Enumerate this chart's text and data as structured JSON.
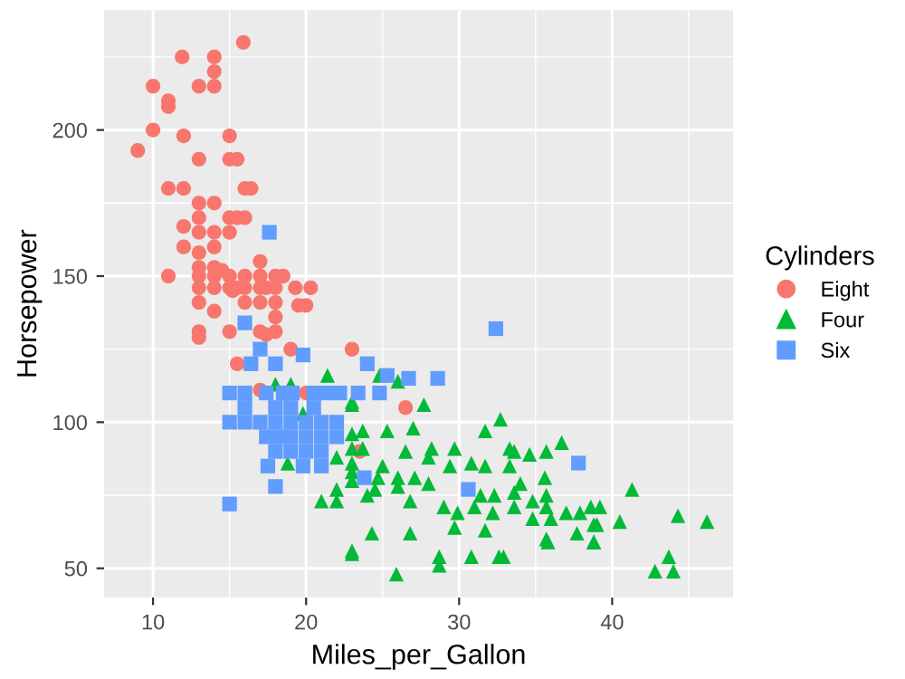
{
  "chart_data": {
    "type": "scatter",
    "xlabel": "Miles_per_Gallon",
    "ylabel": "Horsepower",
    "legend_title": "Cylinders",
    "legend": "right",
    "grid": true,
    "xlim": [
      6.8,
      47.9
    ],
    "ylim": [
      40,
      241
    ],
    "xticks": [
      10,
      20,
      30,
      40
    ],
    "yticks": [
      50,
      100,
      150,
      200
    ],
    "series": [
      {
        "name": "Eight",
        "color": "#f8766d",
        "marker": "circle",
        "x": [
          15.9,
          11.9,
          14,
          14,
          10,
          13,
          14,
          11,
          11,
          10,
          12,
          15,
          9,
          13,
          15,
          15.5,
          11,
          12,
          16,
          16.4,
          13,
          14,
          13,
          15,
          15.5,
          16,
          12,
          13,
          14,
          15,
          12,
          13,
          14,
          13,
          17,
          11,
          13,
          14,
          15,
          16,
          17,
          18,
          18.5,
          14,
          14.5,
          13,
          14,
          15,
          15.5,
          16,
          17,
          17.4,
          18,
          19.3,
          20.3,
          13,
          14,
          15.2,
          16,
          17,
          18,
          18,
          19.5,
          20,
          13,
          13,
          15,
          17,
          17.4,
          18,
          19,
          23,
          15.5,
          17,
          20,
          26.5,
          23.5
        ],
        "values": [
          230,
          225,
          225,
          220,
          215,
          215,
          215,
          210,
          208,
          200,
          198,
          198,
          193,
          190,
          190,
          190,
          180,
          180,
          180,
          180,
          175,
          175,
          170,
          170,
          170,
          170,
          167,
          165,
          165,
          165,
          160,
          158,
          160,
          153,
          155,
          150,
          150,
          150,
          150,
          150,
          150,
          150,
          150,
          153,
          152,
          146,
          146,
          146,
          146,
          146,
          146,
          146,
          146,
          146,
          146,
          141,
          138,
          145,
          141,
          141,
          141,
          136,
          140,
          140,
          131,
          129,
          131,
          131,
          130,
          131,
          125,
          125,
          120,
          111,
          110,
          105,
          90
        ]
      },
      {
        "name": "Four",
        "color": "#00ba38",
        "marker": "triangle",
        "x": [
          18,
          19,
          21.4,
          23,
          19.8,
          23,
          18.8,
          22,
          23,
          22,
          21,
          22,
          23,
          24.8,
          26,
          27.7,
          23,
          32.7,
          31.7,
          36.7,
          35.7,
          34.6,
          33.3,
          33.6,
          23.7,
          25.3,
          27,
          28.2,
          29.7,
          30.8,
          31.7,
          33.3,
          34,
          35.6,
          35.7,
          35.7,
          36,
          35.7,
          35.8,
          37,
          37.9,
          38.6,
          39,
          37.7,
          38.8,
          23,
          23,
          23,
          24.7,
          26,
          27.1,
          26,
          28,
          24.5,
          24,
          26.8,
          31.4,
          32.3,
          33.6,
          34.8,
          29,
          29.9,
          31,
          32.2,
          29.7,
          31.7,
          33.6,
          34.8,
          24.3,
          26.8,
          23,
          28.7,
          28.7,
          30.8,
          32.6,
          32.9,
          25.9,
          28,
          26.5,
          29.4,
          25,
          23.7,
          41.3,
          39.2,
          40.5,
          44.3,
          46.2,
          38.8,
          38.8,
          43.7,
          42.8,
          44
        ],
        "values": [
          113,
          113,
          116,
          107,
          103,
          96,
          86,
          88,
          83,
          77,
          73,
          73,
          55,
          116,
          114,
          106,
          106,
          101,
          97,
          93,
          90,
          89,
          91,
          90,
          97,
          97,
          98,
          91,
          91,
          86,
          85,
          85,
          79,
          81,
          75,
          71,
          67,
          60,
          59,
          69,
          69,
          71,
          65,
          62,
          59,
          91,
          86,
          80,
          81,
          81,
          81,
          78,
          79,
          77,
          75,
          73,
          75,
          75,
          76,
          73,
          71,
          69,
          71,
          69,
          64,
          63,
          71,
          67,
          62,
          62,
          56,
          54,
          51,
          54,
          54,
          54,
          48,
          88,
          90,
          85,
          85,
          91,
          77,
          71,
          66,
          68,
          66,
          65,
          59,
          54,
          49,
          49
        ]
      },
      {
        "name": "Six",
        "color": "#619cff",
        "marker": "square",
        "x": [
          17.6,
          16,
          17,
          16.4,
          18,
          19.8,
          15,
          16,
          17.4,
          18.5,
          19.1,
          20.5,
          21.3,
          22.2,
          16,
          18,
          19,
          20.5,
          15,
          16,
          17,
          18,
          19,
          20,
          21,
          22,
          17.4,
          18.3,
          19,
          20,
          21,
          22,
          18,
          19,
          20,
          21,
          17.5,
          19.8,
          21,
          18,
          15,
          32.4,
          24,
          25.3,
          26.7,
          28.6,
          23.4,
          24.8,
          23.8,
          30.6,
          37.8
        ],
        "values": [
          165,
          134,
          125,
          120,
          120,
          123,
          110,
          110,
          110,
          110,
          110,
          110,
          110,
          110,
          105,
          105,
          105,
          105,
          100,
          100,
          100,
          100,
          100,
          100,
          100,
          100,
          95,
          95,
          95,
          95,
          95,
          95,
          90,
          90,
          90,
          90,
          85,
          85,
          85,
          78,
          72,
          132,
          120,
          116,
          115,
          115,
          110,
          110,
          81,
          77,
          86
        ]
      }
    ]
  }
}
